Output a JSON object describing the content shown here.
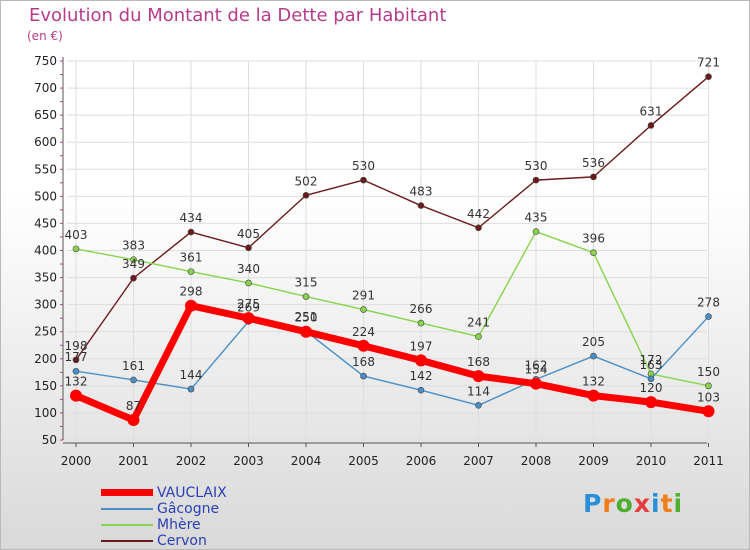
{
  "header": {
    "title": "Evolution du Montant de la Dette par Habitant",
    "subtitle": "(en €)"
  },
  "logo": {
    "text": "Proxiti",
    "colors": [
      "#2a8fd9",
      "#f07c1c",
      "#4caf2e",
      "#e53d3d",
      "#2a8fd9",
      "#f07c1c",
      "#4caf2e"
    ]
  },
  "chart_data": {
    "type": "line",
    "title": "Evolution du Montant de la Dette par Habitant",
    "subtitle": "(en €)",
    "xlabel": "",
    "ylabel": "",
    "categories": [
      "2000",
      "2001",
      "2002",
      "2003",
      "2004",
      "2005",
      "2006",
      "2007",
      "2008",
      "2009",
      "2010",
      "2011"
    ],
    "ylim": [
      50,
      750
    ],
    "yticks": [
      50,
      100,
      150,
      200,
      250,
      300,
      350,
      400,
      450,
      500,
      550,
      600,
      650,
      700,
      750
    ],
    "grid": true,
    "legend_position": "bottom-left",
    "series": [
      {
        "name": "VAUCLAIX",
        "color": "#ff0000",
        "values": [
          132,
          87,
          298,
          275,
          250,
          224,
          197,
          168,
          154,
          132,
          120,
          103
        ]
      },
      {
        "name": "Gâcogne",
        "color": "#4a8ec7",
        "values": [
          177,
          161,
          144,
          269,
          251,
          168,
          142,
          114,
          162,
          205,
          163,
          278
        ]
      },
      {
        "name": "Mhère",
        "color": "#88d44c",
        "values": [
          403,
          383,
          361,
          340,
          315,
          291,
          266,
          241,
          435,
          396,
          172,
          150
        ]
      },
      {
        "name": "Cervon",
        "color": "#6b1a1a",
        "values": [
          198,
          349,
          434,
          405,
          502,
          530,
          483,
          442,
          530,
          536,
          631,
          721
        ]
      }
    ]
  }
}
